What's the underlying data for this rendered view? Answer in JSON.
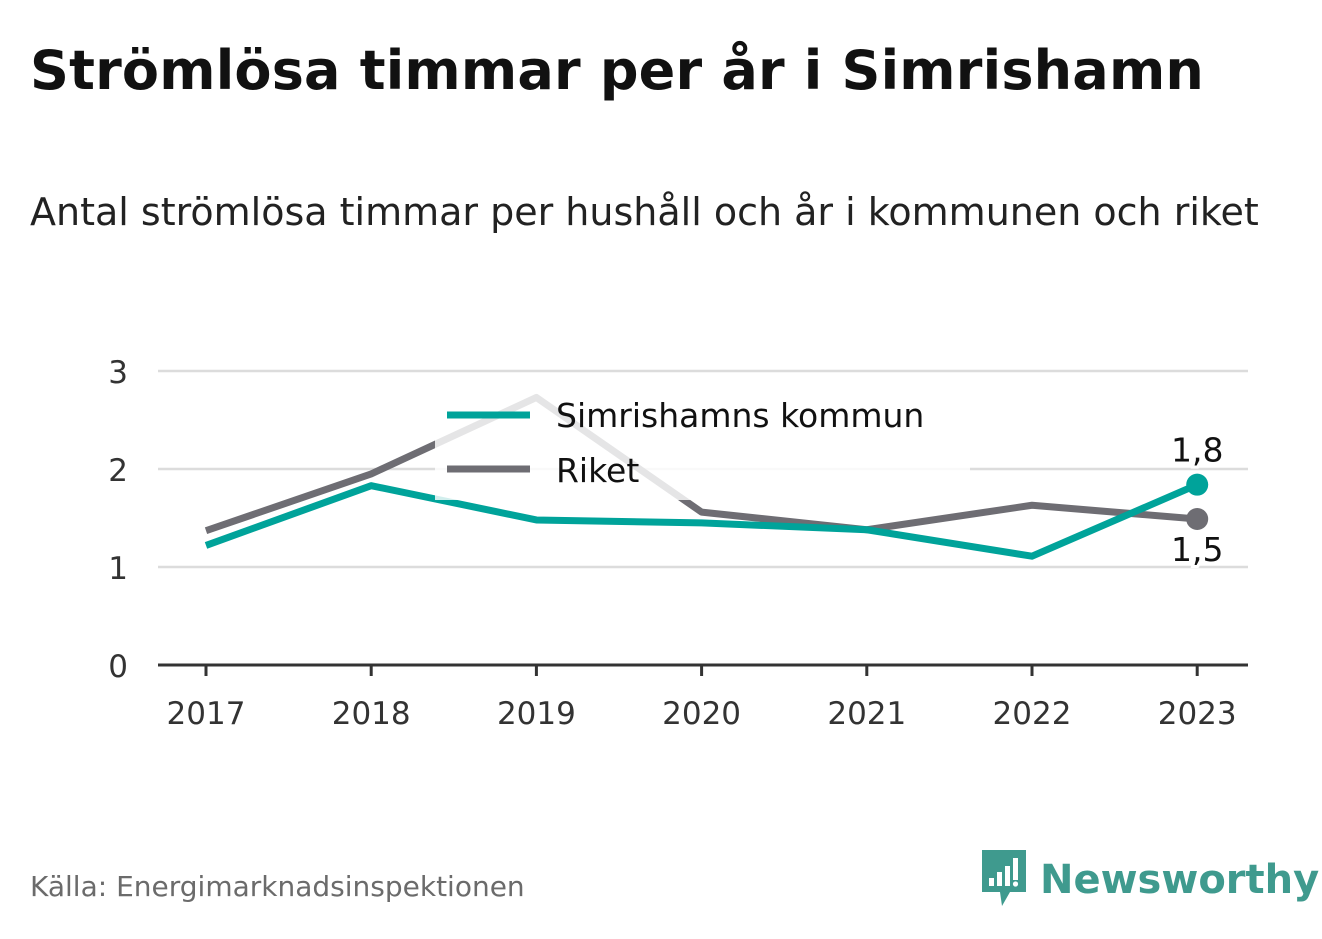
{
  "title": "Strömlösa timmar per år i Simrishamn",
  "subtitle": "Antal strömlösa timmar per hushåll och år i kommunen och riket",
  "source": "Källa: Energimarknadsinspektionen",
  "brand": {
    "name": "Newsworthy",
    "icon": "newsworthy-logo-icon"
  },
  "colors": {
    "kommun": "#00a39a",
    "riket": "#6e6d73",
    "grid": "#dcdcdc",
    "axis": "#333333"
  },
  "chart_data": {
    "type": "line",
    "title": "Strömlösa timmar per år i Simrishamn",
    "subtitle": "Antal strömlösa timmar per hushåll och år i kommunen och riket",
    "categories": [
      "2017",
      "2018",
      "2019",
      "2020",
      "2021",
      "2022",
      "2023"
    ],
    "series": [
      {
        "name": "Simrishamns kommun",
        "values": [
          1.22,
          1.83,
          1.48,
          1.45,
          1.38,
          1.11,
          1.84
        ]
      },
      {
        "name": "Riket",
        "values": [
          1.37,
          1.95,
          2.73,
          1.56,
          1.38,
          1.63,
          1.49
        ]
      }
    ],
    "end_labels": [
      "1,8",
      "1,5"
    ],
    "ylim": [
      0,
      3
    ],
    "yticks": [
      "0",
      "1",
      "2",
      "3"
    ],
    "grid": true,
    "legend": "top-center"
  }
}
